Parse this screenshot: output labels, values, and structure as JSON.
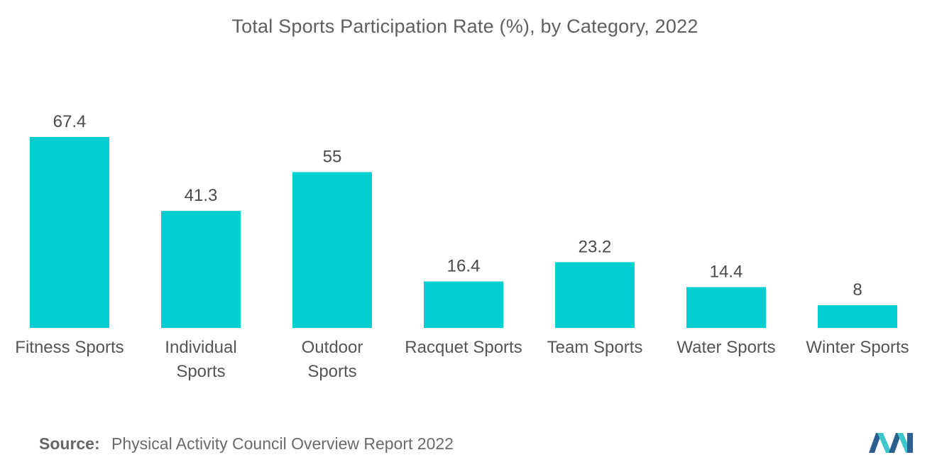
{
  "chart_data": {
    "type": "bar",
    "title": "Total Sports Participation Rate (%), by Category, 2022",
    "categories": [
      [
        "Fitness Sports"
      ],
      [
        "Individual",
        "Sports"
      ],
      [
        "Outdoor",
        "Sports"
      ],
      [
        "Racquet Sports"
      ],
      [
        "Team Sports"
      ],
      [
        "Water Sports"
      ],
      [
        "Winter Sports"
      ]
    ],
    "values": [
      67.4,
      41.3,
      55,
      16.4,
      23.2,
      14.4,
      8
    ],
    "value_labels": [
      "67.4",
      "41.3",
      "55",
      "16.4",
      "23.2",
      "14.4",
      "8"
    ],
    "ylim": [
      0,
      67.4
    ],
    "grid": false,
    "legend": "none",
    "bar_color": "#00ced1",
    "xlabel": "",
    "ylabel": ""
  },
  "source": {
    "label": "Source:",
    "text": "Physical Activity Council Overview Report 2022"
  },
  "colors": {
    "bar": "#00ced1",
    "logo_dark": "#2a5f8f",
    "logo_light": "#3fc6cc"
  },
  "logo": {
    "icon": "mordor-intelligence-logo-icon"
  }
}
